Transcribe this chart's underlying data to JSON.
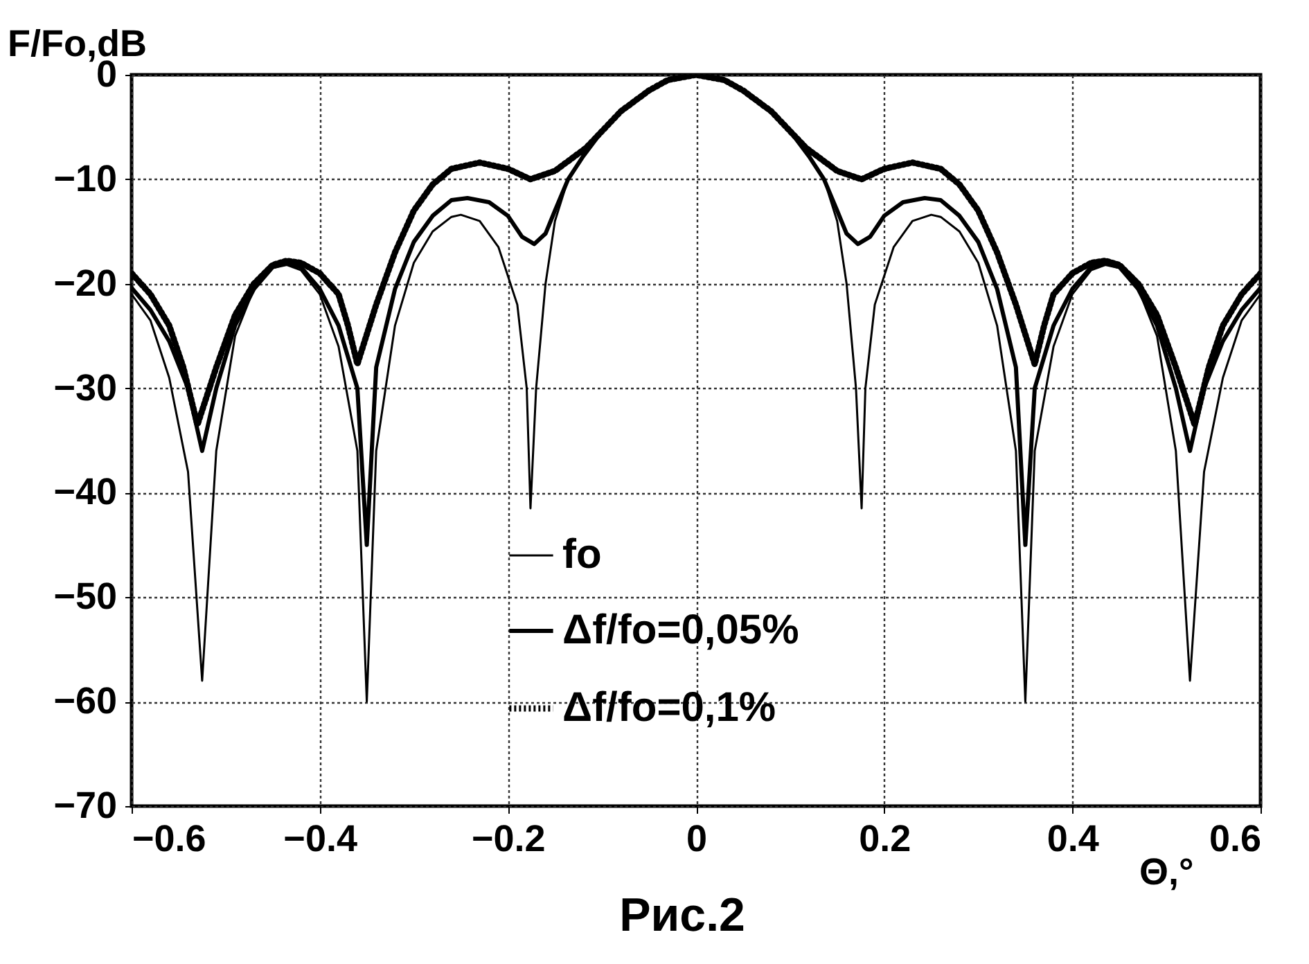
{
  "chart_data": {
    "type": "line",
    "xlabel": "Θ,°",
    "ylabel": "F/Fo,dB",
    "annotations": [
      "Рис.2"
    ],
    "xlim": [
      -0.6,
      0.6
    ],
    "xticks": [
      -0.6,
      -0.4,
      -0.2,
      0,
      0.2,
      0.4,
      0.6
    ],
    "ylim": [
      -70,
      0
    ],
    "yticks": [
      0,
      -10,
      -20,
      -30,
      -40,
      -50,
      -60,
      -70
    ],
    "grid": true,
    "legend": "bottom",
    "series": [
      {
        "name": "fo",
        "color": "#000000",
        "line_style": "solid",
        "x": [
          -0.6,
          -0.58,
          -0.56,
          -0.54,
          -0.525,
          -0.51,
          -0.49,
          -0.47,
          -0.45,
          -0.435,
          -0.42,
          -0.4,
          -0.38,
          -0.36,
          -0.35,
          -0.34,
          -0.32,
          -0.3,
          -0.28,
          -0.26,
          -0.25,
          -0.23,
          -0.21,
          -0.19,
          -0.18,
          -0.176,
          -0.17,
          -0.16,
          -0.15,
          -0.136,
          -0.12,
          -0.1,
          -0.08,
          -0.05,
          -0.03,
          0,
          0.03,
          0.05,
          0.08,
          0.1,
          0.12,
          0.136,
          0.15,
          0.16,
          0.17,
          0.176,
          0.18,
          0.19,
          0.21,
          0.23,
          0.25,
          0.26,
          0.28,
          0.3,
          0.32,
          0.34,
          0.35,
          0.36,
          0.38,
          0.4,
          0.42,
          0.435,
          0.45,
          0.47,
          0.49,
          0.51,
          0.525,
          0.54,
          0.56,
          0.58,
          0.6
        ],
        "values": [
          -21,
          -23.5,
          -29,
          -38,
          -58,
          -36,
          -25,
          -20.5,
          -18.5,
          -18.2,
          -18.7,
          -21,
          -26,
          -36,
          -60,
          -36,
          -24,
          -18,
          -15,
          -13.6,
          -13.4,
          -14,
          -16.5,
          -22,
          -30,
          -41.5,
          -30,
          -20,
          -14,
          -10,
          -7.8,
          -5.4,
          -3.5,
          -1.5,
          -0.5,
          0,
          -0.5,
          -1.5,
          -3.5,
          -5.4,
          -7.8,
          -10,
          -14,
          -20,
          -30,
          -41.5,
          -30,
          -22,
          -16.5,
          -14,
          -13.4,
          -13.6,
          -15,
          -18,
          -24,
          -36,
          -60,
          -36,
          -26,
          -21,
          -18.7,
          -18.2,
          -18.5,
          -20.5,
          -25,
          -36,
          -58,
          -38,
          -29,
          -23.5,
          -21
        ]
      },
      {
        "name": "Δf/fo=0,05%",
        "color": "#000000",
        "line_style": "solid",
        "x": [
          -0.6,
          -0.58,
          -0.56,
          -0.54,
          -0.525,
          -0.51,
          -0.49,
          -0.47,
          -0.45,
          -0.435,
          -0.42,
          -0.4,
          -0.38,
          -0.36,
          -0.35,
          -0.34,
          -0.32,
          -0.3,
          -0.28,
          -0.26,
          -0.243,
          -0.22,
          -0.2,
          -0.185,
          -0.172,
          -0.16,
          -0.15,
          -0.136,
          -0.12,
          -0.1,
          -0.08,
          -0.05,
          -0.03,
          0,
          0.03,
          0.05,
          0.08,
          0.1,
          0.12,
          0.136,
          0.15,
          0.16,
          0.172,
          0.185,
          0.2,
          0.22,
          0.243,
          0.26,
          0.28,
          0.3,
          0.32,
          0.34,
          0.35,
          0.36,
          0.38,
          0.4,
          0.42,
          0.435,
          0.45,
          0.47,
          0.49,
          0.51,
          0.525,
          0.54,
          0.56,
          0.58,
          0.6
        ],
        "values": [
          -20.4,
          -22.5,
          -25.5,
          -30,
          -36,
          -30,
          -24,
          -20.5,
          -18.4,
          -18,
          -18.4,
          -20.5,
          -24,
          -30,
          -45,
          -28,
          -20.5,
          -16,
          -13.5,
          -12,
          -11.8,
          -12.2,
          -13.5,
          -15.5,
          -16.2,
          -15.2,
          -13,
          -10,
          -7.8,
          -5.4,
          -3.5,
          -1.5,
          -0.5,
          0,
          -0.5,
          -1.5,
          -3.5,
          -5.4,
          -7.8,
          -10,
          -13,
          -15.2,
          -16.2,
          -15.5,
          -13.5,
          -12.2,
          -11.8,
          -12,
          -13.5,
          -16,
          -20.5,
          -28,
          -45,
          -30,
          -24,
          -20.5,
          -18.4,
          -18,
          -18.4,
          -20.5,
          -24,
          -30,
          -36,
          -30,
          -25.5,
          -22.5,
          -20.4
        ]
      },
      {
        "name": "Δf/fo=0,1%",
        "color": "#000000",
        "line_style": "dotted",
        "x": [
          -0.6,
          -0.58,
          -0.56,
          -0.545,
          -0.53,
          -0.51,
          -0.49,
          -0.47,
          -0.45,
          -0.435,
          -0.42,
          -0.4,
          -0.38,
          -0.37,
          -0.36,
          -0.34,
          -0.32,
          -0.3,
          -0.28,
          -0.26,
          -0.23,
          -0.2,
          -0.176,
          -0.15,
          -0.117,
          -0.1,
          -0.08,
          -0.05,
          -0.03,
          0,
          0.03,
          0.05,
          0.08,
          0.1,
          0.117,
          0.15,
          0.176,
          0.2,
          0.23,
          0.26,
          0.28,
          0.3,
          0.32,
          0.34,
          0.36,
          0.37,
          0.38,
          0.4,
          0.42,
          0.435,
          0.45,
          0.47,
          0.49,
          0.51,
          0.53,
          0.545,
          0.56,
          0.58,
          0.6
        ],
        "values": [
          -19,
          -21,
          -24,
          -28,
          -33.5,
          -28,
          -23,
          -20,
          -18.2,
          -17.8,
          -18,
          -19,
          -21,
          -24,
          -27.7,
          -22,
          -17,
          -13,
          -10.5,
          -9,
          -8.4,
          -9,
          -10,
          -9.2,
          -7,
          -5.4,
          -3.5,
          -1.5,
          -0.5,
          0,
          -0.5,
          -1.5,
          -3.5,
          -5.4,
          -7,
          -9.2,
          -10,
          -9,
          -8.4,
          -9,
          -10.5,
          -13,
          -17,
          -22,
          -27.7,
          -24,
          -21,
          -19,
          -18,
          -17.8,
          -18.2,
          -20,
          -23,
          -28,
          -33.5,
          -28,
          -24,
          -21,
          -19
        ]
      }
    ]
  }
}
